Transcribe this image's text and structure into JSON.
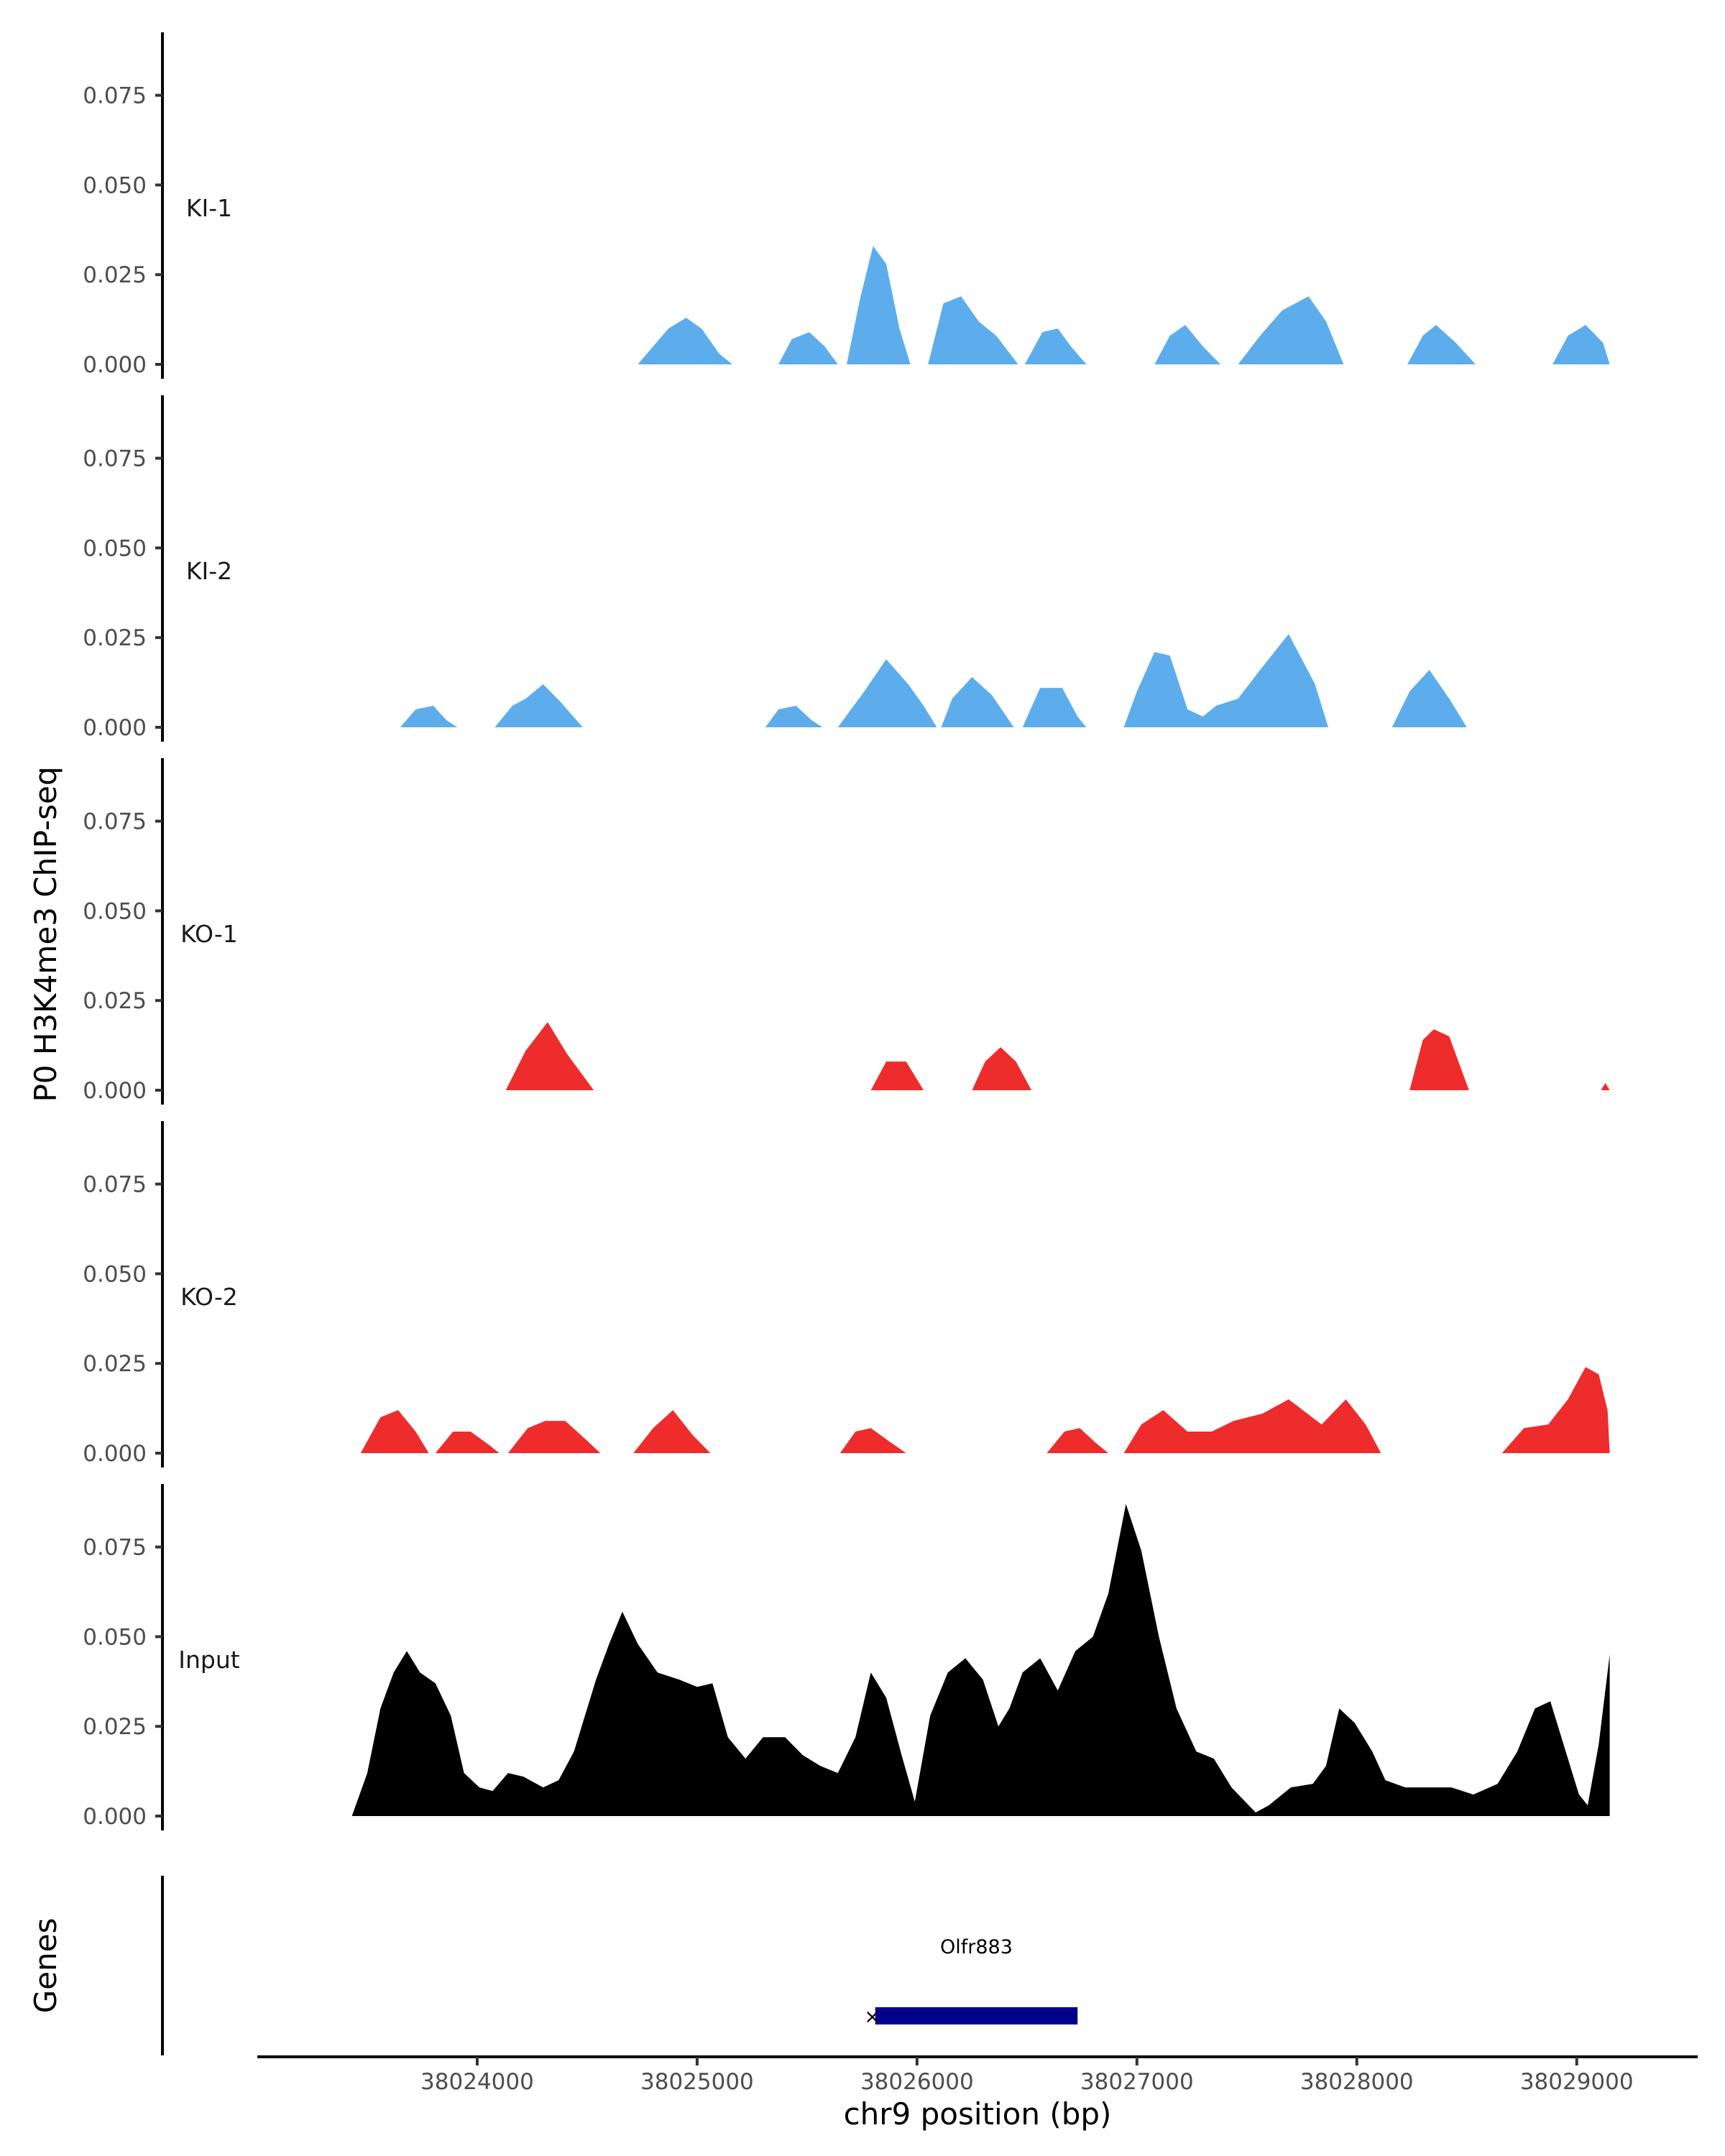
{
  "chart_data": {
    "type": "area",
    "ylabel": "P0 H3K4me3 ChIP-seq",
    "xlabel": "chr9 position (bp)",
    "genes_label": "Genes",
    "ylim": [
      0,
      0.09
    ],
    "xlim": [
      38023000,
      38029550
    ],
    "y_ticks": [
      "0.000",
      "0.025",
      "0.050",
      "0.075"
    ],
    "y_tick_values": [
      0,
      0.025,
      0.05,
      0.075
    ],
    "x_ticks": [
      "38024000",
      "38025000",
      "38026000",
      "38027000",
      "38028000",
      "38029000"
    ],
    "x_tick_values": [
      38024000,
      38025000,
      38026000,
      38027000,
      38028000,
      38029000
    ],
    "colors": {
      "KI": "#5DADEC",
      "KO": "#EE2C2C",
      "Input": "#000000",
      "gene": "#00008B"
    },
    "series": [
      {
        "name": "KI-1",
        "color": "#5DADEC",
        "points": [
          [
            38024730,
            0
          ],
          [
            38024800,
            0.005
          ],
          [
            38024870,
            0.01
          ],
          [
            38024950,
            0.013
          ],
          [
            38025020,
            0.01
          ],
          [
            38025100,
            0.003
          ],
          [
            38025160,
            0
          ],
          [
            38025370,
            0
          ],
          [
            38025430,
            0.007
          ],
          [
            38025510,
            0.009
          ],
          [
            38025580,
            0.005
          ],
          [
            38025640,
            0
          ],
          [
            38025680,
            0
          ],
          [
            38025740,
            0.018
          ],
          [
            38025800,
            0.033
          ],
          [
            38025860,
            0.028
          ],
          [
            38025920,
            0.01
          ],
          [
            38025970,
            0
          ],
          [
            38026050,
            0
          ],
          [
            38026120,
            0.017
          ],
          [
            38026200,
            0.019
          ],
          [
            38026280,
            0.012
          ],
          [
            38026360,
            0.008
          ],
          [
            38026460,
            0
          ],
          [
            38026490,
            0
          ],
          [
            38026570,
            0.009
          ],
          [
            38026640,
            0.01
          ],
          [
            38026700,
            0.005
          ],
          [
            38026770,
            0
          ],
          [
            38027080,
            0
          ],
          [
            38027150,
            0.008
          ],
          [
            38027220,
            0.011
          ],
          [
            38027300,
            0.005
          ],
          [
            38027380,
            0
          ],
          [
            38027460,
            0
          ],
          [
            38027560,
            0.008
          ],
          [
            38027660,
            0.015
          ],
          [
            38027780,
            0.019
          ],
          [
            38027860,
            0.012
          ],
          [
            38027940,
            0
          ],
          [
            38028230,
            0
          ],
          [
            38028300,
            0.008
          ],
          [
            38028360,
            0.011
          ],
          [
            38028450,
            0.006
          ],
          [
            38028540,
            0
          ],
          [
            38028890,
            0
          ],
          [
            38028960,
            0.008
          ],
          [
            38029040,
            0.011
          ],
          [
            38029120,
            0.006
          ],
          [
            38029150,
            0
          ]
        ]
      },
      {
        "name": "KI-2",
        "color": "#5DADEC",
        "points": [
          [
            38023650,
            0
          ],
          [
            38023720,
            0.005
          ],
          [
            38023800,
            0.006
          ],
          [
            38023860,
            0.002
          ],
          [
            38023910,
            0
          ],
          [
            38024080,
            0
          ],
          [
            38024160,
            0.006
          ],
          [
            38024220,
            0.008
          ],
          [
            38024300,
            0.012
          ],
          [
            38024380,
            0.007
          ],
          [
            38024480,
            0
          ],
          [
            38025310,
            0
          ],
          [
            38025370,
            0.005
          ],
          [
            38025450,
            0.006
          ],
          [
            38025520,
            0.002
          ],
          [
            38025570,
            0
          ],
          [
            38025640,
            0
          ],
          [
            38025760,
            0.01
          ],
          [
            38025860,
            0.019
          ],
          [
            38025960,
            0.012
          ],
          [
            38026030,
            0.006
          ],
          [
            38026090,
            0
          ],
          [
            38026110,
            0
          ],
          [
            38026160,
            0.008
          ],
          [
            38026250,
            0.014
          ],
          [
            38026340,
            0.009
          ],
          [
            38026440,
            0
          ],
          [
            38026480,
            0
          ],
          [
            38026560,
            0.011
          ],
          [
            38026660,
            0.011
          ],
          [
            38026730,
            0.003
          ],
          [
            38026770,
            0
          ],
          [
            38026940,
            0
          ],
          [
            38027000,
            0.01
          ],
          [
            38027080,
            0.021
          ],
          [
            38027150,
            0.02
          ],
          [
            38027230,
            0.005
          ],
          [
            38027300,
            0.003
          ],
          [
            38027360,
            0.006
          ],
          [
            38027460,
            0.008
          ],
          [
            38027560,
            0.016
          ],
          [
            38027690,
            0.026
          ],
          [
            38027810,
            0.012
          ],
          [
            38027870,
            0
          ],
          [
            38028160,
            0
          ],
          [
            38028240,
            0.01
          ],
          [
            38028330,
            0.016
          ],
          [
            38028420,
            0.008
          ],
          [
            38028500,
            0
          ]
        ]
      },
      {
        "name": "KO-1",
        "color": "#EE2C2C",
        "points": [
          [
            38024130,
            0
          ],
          [
            38024220,
            0.011
          ],
          [
            38024320,
            0.019
          ],
          [
            38024410,
            0.01
          ],
          [
            38024530,
            0
          ],
          [
            38025790,
            0
          ],
          [
            38025860,
            0.008
          ],
          [
            38025950,
            0.008
          ],
          [
            38026030,
            0
          ],
          [
            38026250,
            0
          ],
          [
            38026310,
            0.008
          ],
          [
            38026380,
            0.012
          ],
          [
            38026450,
            0.008
          ],
          [
            38026520,
            0
          ],
          [
            38028240,
            0
          ],
          [
            38028300,
            0.014
          ],
          [
            38028350,
            0.017
          ],
          [
            38028420,
            0.015
          ],
          [
            38028510,
            0
          ],
          [
            38029110,
            0
          ],
          [
            38029130,
            0.002
          ],
          [
            38029150,
            0
          ]
        ]
      },
      {
        "name": "KO-2",
        "color": "#EE2C2C",
        "points": [
          [
            38023470,
            0
          ],
          [
            38023560,
            0.01
          ],
          [
            38023640,
            0.012
          ],
          [
            38023720,
            0.006
          ],
          [
            38023780,
            0
          ],
          [
            38023810,
            0
          ],
          [
            38023890,
            0.006
          ],
          [
            38023970,
            0.006
          ],
          [
            38024060,
            0.002
          ],
          [
            38024100,
            0
          ],
          [
            38024140,
            0
          ],
          [
            38024230,
            0.007
          ],
          [
            38024310,
            0.009
          ],
          [
            38024400,
            0.009
          ],
          [
            38024490,
            0.004
          ],
          [
            38024560,
            0
          ],
          [
            38024710,
            0
          ],
          [
            38024800,
            0.007
          ],
          [
            38024890,
            0.012
          ],
          [
            38024980,
            0.005
          ],
          [
            38025060,
            0
          ],
          [
            38025650,
            0
          ],
          [
            38025720,
            0.006
          ],
          [
            38025790,
            0.007
          ],
          [
            38025880,
            0.003
          ],
          [
            38025950,
            0
          ],
          [
            38026590,
            0
          ],
          [
            38026670,
            0.006
          ],
          [
            38026740,
            0.007
          ],
          [
            38026810,
            0.003
          ],
          [
            38026870,
            0
          ],
          [
            38026940,
            0
          ],
          [
            38027020,
            0.008
          ],
          [
            38027120,
            0.012
          ],
          [
            38027230,
            0.006
          ],
          [
            38027340,
            0.006
          ],
          [
            38027440,
            0.009
          ],
          [
            38027570,
            0.011
          ],
          [
            38027690,
            0.015
          ],
          [
            38027840,
            0.008
          ],
          [
            38027950,
            0.015
          ],
          [
            38028040,
            0.008
          ],
          [
            38028110,
            0
          ],
          [
            38028660,
            0
          ],
          [
            38028760,
            0.007
          ],
          [
            38028870,
            0.008
          ],
          [
            38028960,
            0.015
          ],
          [
            38029040,
            0.024
          ],
          [
            38029100,
            0.022
          ],
          [
            38029140,
            0.012
          ],
          [
            38029150,
            0
          ]
        ]
      },
      {
        "name": "Input",
        "color": "#000000",
        "points": [
          [
            38023430,
            0
          ],
          [
            38023500,
            0.012
          ],
          [
            38023560,
            0.03
          ],
          [
            38023620,
            0.04
          ],
          [
            38023680,
            0.046
          ],
          [
            38023740,
            0.04
          ],
          [
            38023810,
            0.037
          ],
          [
            38023880,
            0.028
          ],
          [
            38023940,
            0.012
          ],
          [
            38024010,
            0.008
          ],
          [
            38024070,
            0.007
          ],
          [
            38024140,
            0.012
          ],
          [
            38024210,
            0.011
          ],
          [
            38024300,
            0.008
          ],
          [
            38024370,
            0.01
          ],
          [
            38024440,
            0.018
          ],
          [
            38024540,
            0.038
          ],
          [
            38024600,
            0.048
          ],
          [
            38024660,
            0.057
          ],
          [
            38024730,
            0.048
          ],
          [
            38024820,
            0.04
          ],
          [
            38024920,
            0.038
          ],
          [
            38025000,
            0.036
          ],
          [
            38025070,
            0.037
          ],
          [
            38025140,
            0.022
          ],
          [
            38025220,
            0.016
          ],
          [
            38025300,
            0.022
          ],
          [
            38025400,
            0.022
          ],
          [
            38025480,
            0.017
          ],
          [
            38025560,
            0.014
          ],
          [
            38025640,
            0.012
          ],
          [
            38025720,
            0.022
          ],
          [
            38025790,
            0.04
          ],
          [
            38025860,
            0.033
          ],
          [
            38025930,
            0.017
          ],
          [
            38025990,
            0.004
          ],
          [
            38026060,
            0.028
          ],
          [
            38026140,
            0.04
          ],
          [
            38026220,
            0.044
          ],
          [
            38026300,
            0.038
          ],
          [
            38026370,
            0.025
          ],
          [
            38026420,
            0.03
          ],
          [
            38026480,
            0.04
          ],
          [
            38026560,
            0.044
          ],
          [
            38026640,
            0.035
          ],
          [
            38026720,
            0.046
          ],
          [
            38026800,
            0.05
          ],
          [
            38026870,
            0.062
          ],
          [
            38026950,
            0.087
          ],
          [
            38027020,
            0.074
          ],
          [
            38027100,
            0.05
          ],
          [
            38027180,
            0.03
          ],
          [
            38027270,
            0.018
          ],
          [
            38027350,
            0.016
          ],
          [
            38027430,
            0.008
          ],
          [
            38027540,
            0.001
          ],
          [
            38027600,
            0.003
          ],
          [
            38027700,
            0.008
          ],
          [
            38027800,
            0.009
          ],
          [
            38027860,
            0.014
          ],
          [
            38027920,
            0.03
          ],
          [
            38027990,
            0.026
          ],
          [
            38028070,
            0.018
          ],
          [
            38028130,
            0.01
          ],
          [
            38028220,
            0.008
          ],
          [
            38028320,
            0.008
          ],
          [
            38028430,
            0.008
          ],
          [
            38028530,
            0.006
          ],
          [
            38028640,
            0.009
          ],
          [
            38028730,
            0.018
          ],
          [
            38028810,
            0.03
          ],
          [
            38028880,
            0.032
          ],
          [
            38028950,
            0.018
          ],
          [
            38029010,
            0.006
          ],
          [
            38029050,
            0.003
          ],
          [
            38029100,
            0.02
          ],
          [
            38029150,
            0.045
          ],
          [
            38029150,
            0
          ]
        ]
      }
    ],
    "gene": {
      "name": "Olfr883",
      "start": 38025810,
      "end": 38026730,
      "strand_mark": "×"
    }
  }
}
